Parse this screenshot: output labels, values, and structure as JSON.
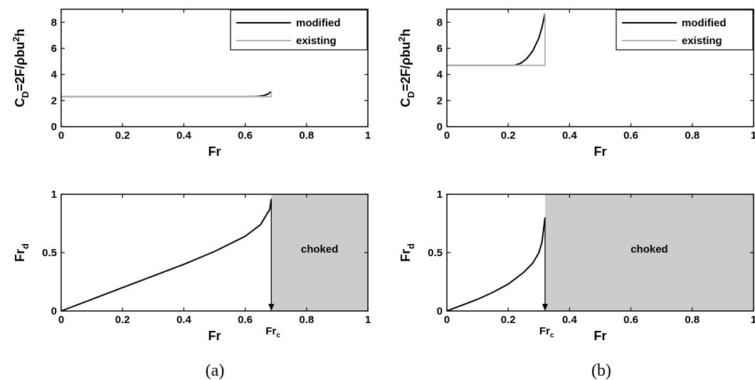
{
  "panel_labels": [
    "(a)",
    "(b)"
  ],
  "colors": {
    "modified": "#000000",
    "existing": "#b3b3b3",
    "choked": "#cccccc"
  },
  "chart_data": [
    {
      "id": "a-top",
      "type": "line",
      "ylabel_main": "C",
      "ylabel_sub": "D",
      "ylabel_rest": "=2F/ρbu",
      "ylabel_sup": "2",
      "ylabel_end": "h",
      "xlabel": "Fr",
      "xlim": [
        0,
        1
      ],
      "ylim": [
        0,
        9
      ],
      "xticks": [
        0,
        0.2,
        0.4,
        0.6,
        0.8,
        1
      ],
      "xticklabels": [
        "0",
        "0.2",
        "0.4",
        "0.6",
        "0.8",
        "1"
      ],
      "yticks": [
        0,
        2,
        4,
        6,
        8
      ],
      "yticklabels": [
        "0",
        "2",
        "4",
        "6",
        "8"
      ],
      "legend": [
        "modified",
        "existing"
      ],
      "legend_position": "top-right",
      "series": [
        {
          "name": "modified",
          "x": [
            0,
            0.6,
            0.64,
            0.66,
            0.675,
            0.685
          ],
          "y": [
            2.3,
            2.3,
            2.32,
            2.38,
            2.5,
            2.7
          ]
        },
        {
          "name": "existing",
          "x": [
            0,
            0.685,
            0.685
          ],
          "y": [
            2.3,
            2.3,
            2.7
          ]
        }
      ]
    },
    {
      "id": "b-top",
      "type": "line",
      "ylabel_main": "C",
      "ylabel_sub": "D",
      "ylabel_rest": "=2F/ρbu",
      "ylabel_sup": "2",
      "ylabel_end": "h",
      "xlabel": "Fr",
      "xlim": [
        0,
        1
      ],
      "ylim": [
        0,
        9
      ],
      "xticks": [
        0,
        0.2,
        0.4,
        0.6,
        0.8,
        1
      ],
      "xticklabels": [
        "0",
        "0.2",
        "0.4",
        "0.6",
        "0.8",
        "1"
      ],
      "yticks": [
        0,
        2,
        4,
        6,
        8
      ],
      "yticklabels": [
        "0",
        "2",
        "4",
        "6",
        "8"
      ],
      "legend": [
        "modified",
        "existing"
      ],
      "legend_position": "top-right",
      "series": [
        {
          "name": "modified",
          "x": [
            0,
            0.22,
            0.24,
            0.26,
            0.28,
            0.3,
            0.31,
            0.32
          ],
          "y": [
            4.7,
            4.7,
            4.85,
            5.2,
            5.8,
            6.8,
            7.6,
            8.7
          ]
        },
        {
          "name": "existing",
          "x": [
            0,
            0.32,
            0.32
          ],
          "y": [
            4.7,
            4.7,
            8.7
          ]
        }
      ]
    },
    {
      "id": "a-bottom",
      "type": "line",
      "ylabel_main": "Fr",
      "ylabel_sub": "d",
      "xlabel": "Fr",
      "xlim": [
        0,
        1
      ],
      "ylim": [
        0,
        1
      ],
      "xticks": [
        0,
        0.2,
        0.4,
        0.6,
        0.8,
        1
      ],
      "xticklabels": [
        "0",
        "0.2",
        "0.4",
        "0.6",
        "0.8",
        "1"
      ],
      "yticks": [
        0,
        0.5,
        1
      ],
      "yticklabels": [
        "0",
        "0.5",
        "1"
      ],
      "critical_label_main": "Fr",
      "critical_label_sub": "c",
      "critical_x": 0.685,
      "choked_label": "choked",
      "choked_range": [
        0.685,
        1
      ],
      "series": [
        {
          "name": "Fr_d",
          "x": [
            0,
            0.1,
            0.2,
            0.3,
            0.4,
            0.5,
            0.6,
            0.65,
            0.68,
            0.685
          ],
          "y": [
            0,
            0.1,
            0.2,
            0.3,
            0.4,
            0.51,
            0.64,
            0.74,
            0.87,
            0.96
          ]
        }
      ]
    },
    {
      "id": "b-bottom",
      "type": "line",
      "ylabel_main": "Fr",
      "ylabel_sub": "d",
      "xlabel": "Fr",
      "xlim": [
        0,
        1
      ],
      "ylim": [
        0,
        1
      ],
      "xticks": [
        0,
        0.2,
        0.4,
        0.6,
        0.8,
        1
      ],
      "xticklabels": [
        "0",
        "0.2",
        "0.4",
        "0.6",
        "0.8",
        "1"
      ],
      "yticks": [
        0,
        0.5,
        1
      ],
      "yticklabels": [
        "0",
        "0.5",
        "1"
      ],
      "critical_label_main": "Fr",
      "critical_label_sub": "c",
      "critical_x": 0.32,
      "choked_label": "choked",
      "choked_range": [
        0.32,
        1
      ],
      "series": [
        {
          "name": "Fr_d",
          "x": [
            0,
            0.05,
            0.1,
            0.15,
            0.2,
            0.25,
            0.28,
            0.3,
            0.31,
            0.32
          ],
          "y": [
            0,
            0.05,
            0.1,
            0.16,
            0.23,
            0.33,
            0.41,
            0.5,
            0.59,
            0.8
          ]
        }
      ]
    }
  ]
}
